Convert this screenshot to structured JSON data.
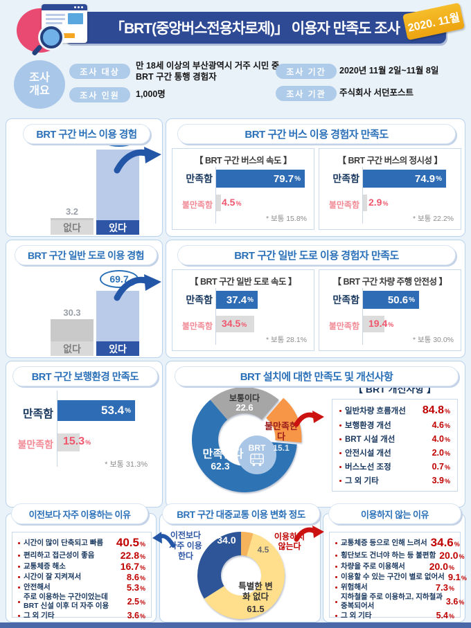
{
  "header": {
    "title": "「BRT(중앙버스전용차로제)」 이용자 만족도 조사",
    "badge": "2020. 11월"
  },
  "overview": {
    "circle_label": "조사 개요",
    "fields": [
      {
        "label": "조사 대상",
        "value": "만 18세 이상의 부산광역시 거주 시민 중\nBRT 구간 통행 경험자"
      },
      {
        "label": "조사 인원",
        "value": "1,000명"
      },
      {
        "label": "조사 기간",
        "value": "2020년 11월 2일~11월 8일"
      },
      {
        "label": "조사 기관",
        "value": "주식회사 서던포스트"
      }
    ]
  },
  "sections": {
    "bus_sat_title": "BRT 구간 버스 이용 경험자 만족도",
    "road_sat_title": "BRT 구간 일반 도로 이용 경험자 만족도",
    "install_title": "BRT 설치에 대한 만족도 및 개선사항"
  },
  "ui": {
    "percent": "%"
  },
  "colors": {
    "navy": "#2e4a94",
    "accent_blue": "#2a70b8",
    "bar_blue": "#2e6cb5",
    "bar_light_blue": "#b9cbe9",
    "bar_gray": "#c9c9c9",
    "label_navy": "#2e55a6",
    "value_red": "#c00000",
    "dissatisfied_pink": "#f0566c",
    "donut_blue": "#2e74b5",
    "donut_gray": "#a6a6a6",
    "donut_orange": "#f79646",
    "change_blue": "#2e5597",
    "change_yellow": "#ffdf8c",
    "change_orange": "#f5b35c",
    "badge_yellow": "#f2b01e",
    "icon_pink": "#e84a71"
  },
  "chart_data": [
    {
      "id": "bus-experience",
      "type": "bar",
      "title": "BRT 구간 버스 이용 경험",
      "categories": [
        "없다",
        "있다"
      ],
      "values": [
        3.2,
        96.8
      ],
      "displays": [
        "3.2",
        "96.8"
      ],
      "ylim": [
        0,
        100
      ]
    },
    {
      "id": "bus-speed-satisfaction",
      "type": "bar",
      "orientation": "horizontal",
      "title": "【 BRT 구간 버스의 속도 】",
      "categories": [
        "만족함",
        "불만족함"
      ],
      "values": [
        79.7,
        4.5
      ],
      "displays": [
        "79.7",
        "4.5"
      ],
      "note_label": "* 보통",
      "note_value": "15.8%"
    },
    {
      "id": "bus-punctuality-satisfaction",
      "type": "bar",
      "orientation": "horizontal",
      "title": "【 BRT 구간 버스의 정시성 】",
      "categories": [
        "만족함",
        "불만족함"
      ],
      "values": [
        74.9,
        2.9
      ],
      "displays": [
        "74.9",
        "2.9"
      ],
      "note_label": "* 보통",
      "note_value": "22.2%"
    },
    {
      "id": "road-experience",
      "type": "bar",
      "title": "BRT 구간 일반 도로 이용 경험",
      "categories": [
        "없다",
        "있다"
      ],
      "values": [
        30.3,
        69.7
      ],
      "displays": [
        "30.3",
        "69.7"
      ],
      "ylim": [
        0,
        100
      ]
    },
    {
      "id": "road-speed-satisfaction",
      "type": "bar",
      "orientation": "horizontal",
      "title": "【 BRT 구간 일반 도로 속도 】",
      "categories": [
        "만족함",
        "불만족함"
      ],
      "values": [
        37.4,
        34.5
      ],
      "displays": [
        "37.4",
        "34.5"
      ],
      "note_label": "* 보통",
      "note_value": "28.1%"
    },
    {
      "id": "driving-safety-satisfaction",
      "type": "bar",
      "orientation": "horizontal",
      "title": "【 BRT 구간 차량 주행 안전성 】",
      "categories": [
        "만족함",
        "불만족함"
      ],
      "values": [
        50.6,
        19.4
      ],
      "displays": [
        "50.6",
        "19.4"
      ],
      "note_label": "* 보통",
      "note_value": "30.0%"
    },
    {
      "id": "walking-env-satisfaction",
      "type": "bar",
      "orientation": "horizontal",
      "title": "BRT 구간 보행환경 만족도",
      "categories": [
        "만족함",
        "불만족함"
      ],
      "values": [
        53.4,
        15.3
      ],
      "displays": [
        "53.4",
        "15.3"
      ],
      "note_label": "* 보통",
      "note_value": "31.3%"
    },
    {
      "id": "install-satisfaction",
      "type": "pie",
      "title": "BRT 설치에 대한 만족도",
      "center_label": "BRT",
      "slices": [
        {
          "label": "만족한다",
          "value": 62.3,
          "display": "62.3",
          "color": "#2e74b5"
        },
        {
          "label": "보통이다",
          "value": 22.6,
          "display": "22.6",
          "color": "#a6a6a6"
        },
        {
          "label": "불만족한다",
          "value": 15.1,
          "display": "15.1",
          "color": "#f79646",
          "exploded": true
        }
      ]
    },
    {
      "id": "improvements",
      "type": "bar",
      "orientation": "horizontal",
      "title": "【 BRT 개선사항 】",
      "rows": [
        {
          "label": "일반차량 흐름개선",
          "value": 84.8,
          "display": "84.8"
        },
        {
          "label": "보행환경 개선",
          "value": 4.6,
          "display": "4.6"
        },
        {
          "label": "BRT 시설 개선",
          "value": 4.0,
          "display": "4.0"
        },
        {
          "label": "안전시설 개선",
          "value": 2.0,
          "display": "2.0"
        },
        {
          "label": "버스노선 조정",
          "value": 0.7,
          "display": "0.7"
        },
        {
          "label": "그 외 기타",
          "value": 3.9,
          "display": "3.9"
        }
      ]
    },
    {
      "id": "usage-change",
      "type": "pie",
      "title": "BRT 구간 대중교통 이용 변화 정도",
      "slices": [
        {
          "label": "이전보다 자주 이용한다",
          "value": 34.0,
          "display": "34.0",
          "color": "#2e5597"
        },
        {
          "label": "이용하지 않는다",
          "value": 4.5,
          "display": "4.5",
          "color": "#f5b35c"
        },
        {
          "label": "특별한 변화 없다",
          "value": 61.5,
          "display": "61.5",
          "color": "#ffdf8c"
        }
      ]
    },
    {
      "id": "frequent-use-reasons",
      "type": "bar",
      "orientation": "horizontal",
      "title": "이전보다 자주 이용하는 이유",
      "rows": [
        {
          "label": "시간이 많이 단축되고 빠름",
          "value": 40.5,
          "display": "40.5"
        },
        {
          "label": "편리하고 접근성이 좋음",
          "value": 22.8,
          "display": "22.8"
        },
        {
          "label": "교통체증 해소",
          "value": 16.7,
          "display": "16.7"
        },
        {
          "label": "시간이 잘 지켜져서",
          "value": 8.6,
          "display": "8.6"
        },
        {
          "label": "안전해서",
          "value": 5.3,
          "display": "5.3"
        },
        {
          "label": "주로 이용하는 구간이었는데\nBRT 신설 이후 더 자주 이용",
          "value": 2.5,
          "display": "2.5"
        },
        {
          "label": "그 외 기타",
          "value": 3.6,
          "display": "3.6"
        }
      ]
    },
    {
      "id": "non-use-reasons",
      "type": "bar",
      "orientation": "horizontal",
      "title": "이용하지 않는 이유",
      "rows": [
        {
          "label": "교통체증 등으로 인해 느려서",
          "value": 34.6,
          "display": "34.6"
        },
        {
          "label": "횡단보도 건너야 하는 등 불편함",
          "value": 20.0,
          "display": "20.0"
        },
        {
          "label": "차량을 주로 이용해서",
          "value": 20.0,
          "display": "20.0"
        },
        {
          "label": "이용할 수 있는 구간이 별로 없어서",
          "value": 9.1,
          "display": "9.1"
        },
        {
          "label": "위험해서",
          "value": 7.3,
          "display": "7.3"
        },
        {
          "label": "지하철을 주로 이용하고, 지하철과\n중복되어서",
          "value": 3.6,
          "display": "3.6"
        },
        {
          "label": "그 외 기타",
          "value": 5.4,
          "display": "5.4"
        }
      ]
    }
  ]
}
